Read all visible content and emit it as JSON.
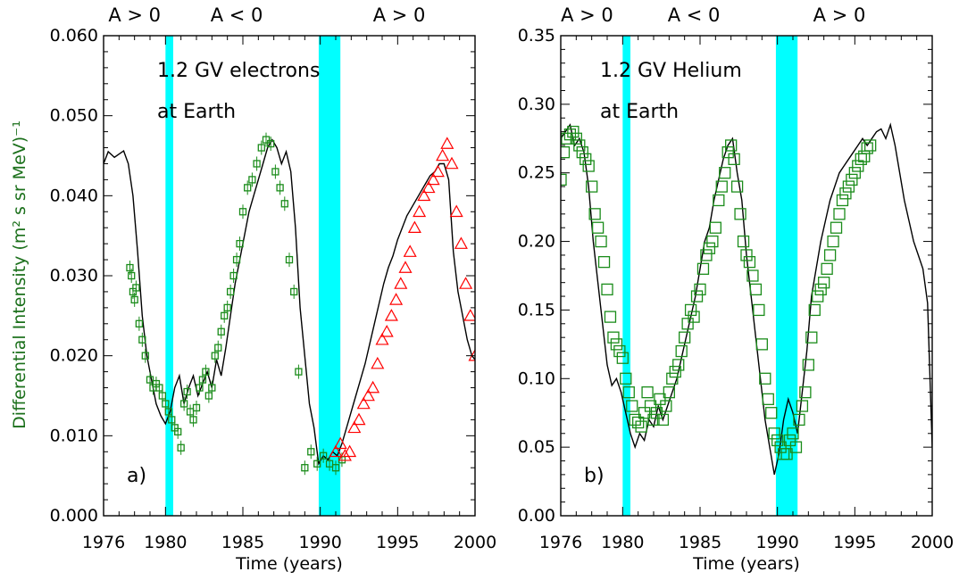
{
  "chart_data": [
    {
      "type": "scatter",
      "title_lines": [
        "1.2 GV electrons",
        "at Earth"
      ],
      "panel_label": "a)",
      "xlabel": "Time (years)",
      "ylabel": "Differential Intensity (m² s sr MeV)⁻¹",
      "xlim": [
        1976,
        2000
      ],
      "ylim": [
        0.0,
        0.06
      ],
      "xticks": [
        "1976",
        "1980",
        "1985",
        "1990",
        "1995",
        "2000"
      ],
      "xtick_values": [
        1976,
        1980,
        1985,
        1990,
        1995,
        2000
      ],
      "yticks": [
        "0.000",
        "0.010",
        "0.020",
        "0.030",
        "0.040",
        "0.050",
        "0.060"
      ],
      "ytick_values": [
        0.0,
        0.01,
        0.02,
        0.03,
        0.04,
        0.05,
        0.06
      ],
      "polarity_labels": [
        {
          "text": "A > 0",
          "x": 1978.0
        },
        {
          "text": "A < 0",
          "x": 1984.6
        },
        {
          "text": "A > 0",
          "x": 1995.1
        }
      ],
      "bands": [
        [
          1980.0,
          1980.5
        ],
        [
          1989.9,
          1991.3
        ]
      ],
      "band_color": "#00ffff",
      "line": {
        "color": "#000000",
        "x": [
          1976.0,
          1976.3,
          1976.7,
          1977.0,
          1977.3,
          1977.6,
          1977.9,
          1978.2,
          1978.5,
          1978.8,
          1979.1,
          1979.4,
          1979.7,
          1980.0,
          1980.3,
          1980.6,
          1980.9,
          1981.2,
          1981.5,
          1981.8,
          1982.1,
          1982.4,
          1982.7,
          1983.0,
          1983.3,
          1983.6,
          1983.9,
          1984.2,
          1984.5,
          1984.8,
          1985.1,
          1985.4,
          1985.7,
          1986.0,
          1986.3,
          1986.6,
          1986.9,
          1987.2,
          1987.5,
          1987.8,
          1988.1,
          1988.4,
          1988.7,
          1989.0,
          1989.3,
          1989.6,
          1989.9,
          1990.2,
          1990.5,
          1990.8,
          1991.1,
          1991.4,
          1991.7,
          1992.0,
          1992.3,
          1992.6,
          1992.9,
          1993.2,
          1993.5,
          1993.8,
          1994.1,
          1994.4,
          1994.7,
          1995.0,
          1995.3,
          1995.6,
          1995.9,
          1996.2,
          1996.5,
          1996.8,
          1997.1,
          1997.4,
          1997.7,
          1998.0,
          1998.3,
          1998.6,
          1998.9,
          1999.2,
          1999.5,
          1999.8,
          2000.0
        ],
        "y": [
          0.044,
          0.0455,
          0.0448,
          0.0452,
          0.0456,
          0.044,
          0.04,
          0.033,
          0.025,
          0.02,
          0.017,
          0.014,
          0.0125,
          0.0115,
          0.013,
          0.016,
          0.0175,
          0.014,
          0.016,
          0.0175,
          0.015,
          0.0165,
          0.018,
          0.016,
          0.0195,
          0.0175,
          0.021,
          0.025,
          0.029,
          0.032,
          0.035,
          0.038,
          0.04,
          0.042,
          0.044,
          0.046,
          0.047,
          0.046,
          0.044,
          0.0455,
          0.043,
          0.036,
          0.026,
          0.02,
          0.014,
          0.011,
          0.0065,
          0.0075,
          0.007,
          0.008,
          0.0075,
          0.009,
          0.011,
          0.013,
          0.015,
          0.017,
          0.019,
          0.0215,
          0.024,
          0.0265,
          0.029,
          0.031,
          0.0325,
          0.0345,
          0.036,
          0.0375,
          0.0385,
          0.0395,
          0.0405,
          0.0415,
          0.0425,
          0.043,
          0.044,
          0.044,
          0.042,
          0.033,
          0.028,
          0.025,
          0.022,
          0.02,
          0.0195
        ]
      },
      "series": [
        {
          "marker": "square",
          "color": "#1a8c1a",
          "x": [
            1977.7,
            1977.8,
            1977.9,
            1978.0,
            1978.1,
            1978.3,
            1978.5,
            1978.7,
            1979.0,
            1979.2,
            1979.4,
            1979.6,
            1979.8,
            1980.0,
            1980.2,
            1980.4,
            1980.6,
            1980.8,
            1981.0,
            1981.2,
            1981.4,
            1981.6,
            1981.8,
            1982.0,
            1982.2,
            1982.4,
            1982.6,
            1982.8,
            1983.0,
            1983.2,
            1983.4,
            1983.6,
            1983.8,
            1984.0,
            1984.2,
            1984.4,
            1984.6,
            1984.8,
            1985.0,
            1985.3,
            1985.6,
            1985.9,
            1986.2,
            1986.5,
            1986.8,
            1987.1,
            1987.4,
            1987.7,
            1988.0,
            1988.3,
            1988.6,
            1989.0,
            1989.4,
            1989.8,
            1990.2,
            1990.6,
            1991.0,
            1991.4
          ],
          "y": [
            0.031,
            0.03,
            0.028,
            0.027,
            0.0285,
            0.024,
            0.022,
            0.02,
            0.017,
            0.016,
            0.0165,
            0.016,
            0.015,
            0.014,
            0.013,
            0.012,
            0.011,
            0.0105,
            0.0085,
            0.014,
            0.0155,
            0.013,
            0.012,
            0.0135,
            0.016,
            0.017,
            0.018,
            0.015,
            0.016,
            0.02,
            0.021,
            0.023,
            0.025,
            0.026,
            0.028,
            0.03,
            0.032,
            0.034,
            0.038,
            0.041,
            0.042,
            0.044,
            0.046,
            0.047,
            0.0465,
            0.043,
            0.041,
            0.039,
            0.032,
            0.028,
            0.018,
            0.006,
            0.008,
            0.0065,
            0.0075,
            0.0065,
            0.006,
            0.007
          ]
        },
        {
          "marker": "triangle",
          "color": "#ff0000",
          "x": [
            1991.0,
            1991.3,
            1991.6,
            1991.9,
            1992.2,
            1992.5,
            1992.8,
            1993.1,
            1993.4,
            1993.7,
            1994.0,
            1994.3,
            1994.6,
            1994.9,
            1995.2,
            1995.5,
            1995.8,
            1996.1,
            1996.4,
            1996.7,
            1997.0,
            1997.3,
            1997.6,
            1997.9,
            1998.2,
            1998.5,
            1998.8,
            1999.1,
            1999.4,
            1999.7,
            2000.0
          ],
          "y": [
            0.008,
            0.009,
            0.0075,
            0.008,
            0.011,
            0.012,
            0.014,
            0.015,
            0.016,
            0.019,
            0.022,
            0.023,
            0.025,
            0.027,
            0.029,
            0.031,
            0.033,
            0.036,
            0.038,
            0.04,
            0.041,
            0.042,
            0.043,
            0.045,
            0.0465,
            0.044,
            0.038,
            0.034,
            0.029,
            0.025,
            0.02
          ]
        }
      ]
    },
    {
      "type": "scatter",
      "title_lines": [
        "1.2 GV Helium",
        "at Earth"
      ],
      "panel_label": "b)",
      "xlabel": "Time (years)",
      "xlim": [
        1976,
        2000
      ],
      "ylim": [
        0.0,
        0.35
      ],
      "xticks": [
        "1976",
        "1980",
        "1985",
        "1990",
        "1995",
        "2000"
      ],
      "xtick_values": [
        1976,
        1980,
        1985,
        1990,
        1995,
        2000
      ],
      "yticks": [
        "0.00",
        "0.05",
        "0.10",
        "0.15",
        "0.20",
        "0.25",
        "0.30",
        "0.35"
      ],
      "ytick_values": [
        0.0,
        0.05,
        0.1,
        0.15,
        0.2,
        0.25,
        0.3,
        0.35
      ],
      "polarity_labels": [
        {
          "text": "A > 0",
          "x": 1977.7
        },
        {
          "text": "A < 0",
          "x": 1984.6
        },
        {
          "text": "A > 0",
          "x": 1994.0
        }
      ],
      "bands": [
        [
          1980.0,
          1980.5
        ],
        [
          1989.9,
          1991.3
        ]
      ],
      "band_color": "#00ffff",
      "line": {
        "color": "#000000",
        "x": [
          1976.0,
          1976.3,
          1976.6,
          1976.9,
          1977.2,
          1977.5,
          1977.8,
          1978.1,
          1978.4,
          1978.7,
          1979.0,
          1979.3,
          1979.6,
          1979.9,
          1980.2,
          1980.5,
          1980.8,
          1981.1,
          1981.4,
          1981.7,
          1982.0,
          1982.3,
          1982.6,
          1982.9,
          1983.2,
          1983.5,
          1983.8,
          1984.1,
          1984.4,
          1984.7,
          1985.0,
          1985.3,
          1985.6,
          1985.9,
          1986.2,
          1986.5,
          1986.8,
          1987.1,
          1987.4,
          1987.7,
          1988.0,
          1988.3,
          1988.6,
          1988.9,
          1989.2,
          1989.5,
          1989.8,
          1990.1,
          1990.4,
          1990.7,
          1991.0,
          1991.3,
          1991.6,
          1991.9,
          1992.2,
          1992.5,
          1992.8,
          1993.1,
          1993.4,
          1993.7,
          1994.0,
          1994.3,
          1994.6,
          1994.9,
          1995.2,
          1995.5,
          1995.8,
          1996.1,
          1996.4,
          1996.7,
          1997.0,
          1997.3,
          1997.6,
          1997.9,
          1998.2,
          1998.5,
          1998.8,
          1999.1,
          1999.4,
          1999.7,
          2000.0
        ],
        "y": [
          0.275,
          0.28,
          0.285,
          0.27,
          0.275,
          0.265,
          0.24,
          0.2,
          0.17,
          0.14,
          0.11,
          0.095,
          0.1,
          0.09,
          0.075,
          0.06,
          0.05,
          0.06,
          0.055,
          0.07,
          0.065,
          0.08,
          0.07,
          0.08,
          0.09,
          0.1,
          0.115,
          0.13,
          0.145,
          0.16,
          0.18,
          0.2,
          0.21,
          0.23,
          0.245,
          0.26,
          0.27,
          0.275,
          0.25,
          0.23,
          0.19,
          0.16,
          0.13,
          0.1,
          0.07,
          0.05,
          0.03,
          0.045,
          0.07,
          0.085,
          0.075,
          0.06,
          0.09,
          0.12,
          0.16,
          0.18,
          0.2,
          0.215,
          0.23,
          0.24,
          0.25,
          0.255,
          0.26,
          0.265,
          0.27,
          0.275,
          0.27,
          0.275,
          0.28,
          0.282,
          0.275,
          0.285,
          0.27,
          0.25,
          0.23,
          0.215,
          0.2,
          0.19,
          0.18,
          0.155,
          0.05
        ]
      },
      "series": [
        {
          "marker": "square",
          "color": "#1a8c1a",
          "x": [
            1976.0,
            1976.2,
            1976.4,
            1976.6,
            1976.8,
            1977.0,
            1977.2,
            1977.4,
            1977.6,
            1977.8,
            1978.0,
            1978.2,
            1978.4,
            1978.6,
            1978.8,
            1979.0,
            1979.2,
            1979.4,
            1979.6,
            1979.8,
            1980.0,
            1980.2,
            1980.4,
            1980.6,
            1980.8,
            1981.0,
            1981.2,
            1981.4,
            1981.6,
            1981.8,
            1982.0,
            1982.2,
            1982.4,
            1982.6,
            1982.8,
            1983.0,
            1983.2,
            1983.4,
            1983.6,
            1983.8,
            1984.0,
            1984.2,
            1984.4,
            1984.6,
            1984.8,
            1985.0,
            1985.2,
            1985.4,
            1985.6,
            1985.8,
            1986.0,
            1986.2,
            1986.4,
            1986.6,
            1986.8,
            1987.0,
            1987.2,
            1987.4,
            1987.6,
            1987.8,
            1988.0,
            1988.2,
            1988.4,
            1988.6,
            1988.8,
            1989.0,
            1989.2,
            1989.4,
            1989.6,
            1989.8,
            1990.0,
            1990.2,
            1990.4,
            1990.6,
            1990.8,
            1991.0,
            1991.2,
            1991.4,
            1991.6,
            1991.8,
            1992.0,
            1992.2,
            1992.4,
            1992.6,
            1992.8,
            1993.0,
            1993.2,
            1993.4,
            1993.6,
            1993.8,
            1994.0,
            1994.2,
            1994.4,
            1994.6,
            1994.8,
            1995.0,
            1995.2,
            1995.4,
            1995.6,
            1995.8,
            1996.0
          ],
          "y": [
            0.245,
            0.265,
            0.275,
            0.278,
            0.28,
            0.275,
            0.27,
            0.265,
            0.26,
            0.255,
            0.24,
            0.22,
            0.21,
            0.2,
            0.185,
            0.165,
            0.145,
            0.13,
            0.125,
            0.12,
            0.115,
            0.1,
            0.09,
            0.08,
            0.07,
            0.068,
            0.065,
            0.075,
            0.09,
            0.08,
            0.07,
            0.075,
            0.085,
            0.07,
            0.08,
            0.09,
            0.1,
            0.105,
            0.11,
            0.12,
            0.13,
            0.14,
            0.15,
            0.145,
            0.16,
            0.165,
            0.18,
            0.19,
            0.195,
            0.2,
            0.21,
            0.23,
            0.24,
            0.25,
            0.265,
            0.27,
            0.26,
            0.24,
            0.22,
            0.2,
            0.19,
            0.185,
            0.175,
            0.165,
            0.15,
            0.125,
            0.1,
            0.085,
            0.075,
            0.06,
            0.055,
            0.05,
            0.045,
            0.045,
            0.055,
            0.06,
            0.05,
            0.07,
            0.08,
            0.09,
            0.11,
            0.13,
            0.15,
            0.16,
            0.165,
            0.17,
            0.18,
            0.19,
            0.2,
            0.21,
            0.22,
            0.23,
            0.235,
            0.24,
            0.245,
            0.25,
            0.255,
            0.26,
            0.262,
            0.268,
            0.27
          ]
        }
      ]
    }
  ]
}
